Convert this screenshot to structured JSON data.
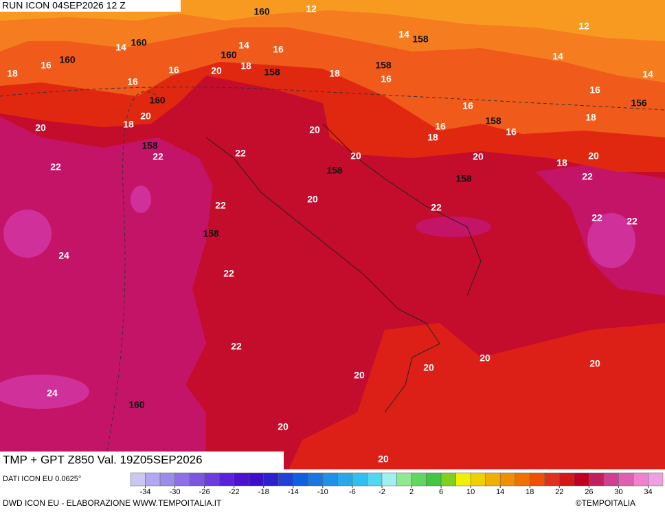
{
  "header": {
    "run": "RUN ICON 04SEP2026 12 Z",
    "title": "TMP + GPT Z850 Val. 19Z05SEP2026"
  },
  "map": {
    "contour_labels": [
      160,
      12,
      12,
      14,
      160,
      14,
      158,
      14,
      160,
      16,
      160,
      18,
      16,
      16,
      20,
      18,
      158,
      18,
      158,
      16,
      14,
      14,
      16,
      16,
      160,
      156,
      16,
      20,
      18,
      20,
      20,
      158,
      16,
      16,
      18,
      18,
      158,
      22,
      22,
      20,
      20,
      18,
      20,
      22,
      158,
      158,
      22,
      20,
      22,
      22,
      22,
      22,
      158,
      24,
      22,
      22,
      20,
      20,
      20,
      20,
      24,
      160,
      20,
      20
    ]
  },
  "colorbar": {
    "range": [
      -36,
      36
    ],
    "ticks": [
      -34,
      -30,
      -26,
      -22,
      -18,
      -14,
      -10,
      -6,
      -2,
      2,
      6,
      10,
      14,
      18,
      22,
      26,
      30,
      34
    ],
    "colors": [
      "#c8c8f0",
      "#b0a8f0",
      "#9c8ce8",
      "#8c70e8",
      "#7c56e0",
      "#6c3ce0",
      "#5c20d8",
      "#4c10d0",
      "#3c10c8",
      "#2c20d0",
      "#2040d8",
      "#1060e0",
      "#1878e0",
      "#2090e8",
      "#28a8e8",
      "#30c0f0",
      "#50d8f0",
      "#a0f0f0",
      "#90e890",
      "#60d860",
      "#40c840",
      "#80d020",
      "#f0f000",
      "#f0d000",
      "#f0b000",
      "#f09000",
      "#f07000",
      "#f05000",
      "#e03020",
      "#d01818",
      "#c00020",
      "#c02060",
      "#d04090",
      "#e060b0",
      "#f080d0",
      "#f0a0e0"
    ]
  },
  "footer": {
    "source": "DATI ICON EU 0.0625°",
    "credit": "DWD ICON EU - ELABORAZIONE WWW.TEMPOITALIA.IT",
    "copyright": "©TEMPOITALIA"
  }
}
